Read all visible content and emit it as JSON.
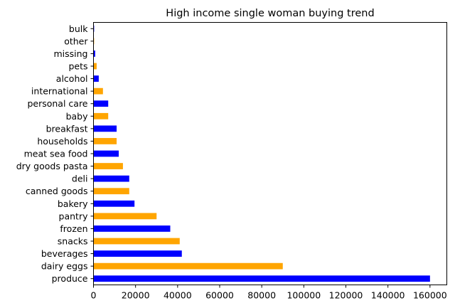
{
  "chart_data": {
    "type": "bar",
    "orientation": "horizontal",
    "title": "High income single woman buying trend",
    "xlabel": "",
    "ylabel": "",
    "xlim": [
      0,
      168000
    ],
    "xticks": [
      0,
      20000,
      40000,
      60000,
      80000,
      100000,
      120000,
      140000,
      160000
    ],
    "grid": false,
    "colors": {
      "blue": "#0000ff",
      "orange": "#ffa500"
    },
    "bars": [
      {
        "category": "produce",
        "value": 160000,
        "color": "#0000ff"
      },
      {
        "category": "dairy eggs",
        "value": 90000,
        "color": "#ffa500"
      },
      {
        "category": "beverages",
        "value": 42000,
        "color": "#0000ff"
      },
      {
        "category": "snacks",
        "value": 41000,
        "color": "#ffa500"
      },
      {
        "category": "frozen",
        "value": 36500,
        "color": "#0000ff"
      },
      {
        "category": "pantry",
        "value": 30000,
        "color": "#ffa500"
      },
      {
        "category": "bakery",
        "value": 19500,
        "color": "#0000ff"
      },
      {
        "category": "canned goods",
        "value": 17000,
        "color": "#ffa500"
      },
      {
        "category": "deli",
        "value": 17000,
        "color": "#0000ff"
      },
      {
        "category": "dry goods pasta",
        "value": 14000,
        "color": "#ffa500"
      },
      {
        "category": "meat sea food",
        "value": 12000,
        "color": "#0000ff"
      },
      {
        "category": "households",
        "value": 11000,
        "color": "#ffa500"
      },
      {
        "category": "breakfast",
        "value": 11000,
        "color": "#0000ff"
      },
      {
        "category": "baby",
        "value": 7000,
        "color": "#ffa500"
      },
      {
        "category": "personal care",
        "value": 7000,
        "color": "#0000ff"
      },
      {
        "category": "international",
        "value": 4500,
        "color": "#ffa500"
      },
      {
        "category": "alcohol",
        "value": 2500,
        "color": "#0000ff"
      },
      {
        "category": "pets",
        "value": 1500,
        "color": "#ffa500"
      },
      {
        "category": "missing",
        "value": 800,
        "color": "#0000ff"
      },
      {
        "category": "other",
        "value": 300,
        "color": "#ffa500"
      },
      {
        "category": "bulk",
        "value": 300,
        "color": "#0000ff"
      }
    ]
  }
}
